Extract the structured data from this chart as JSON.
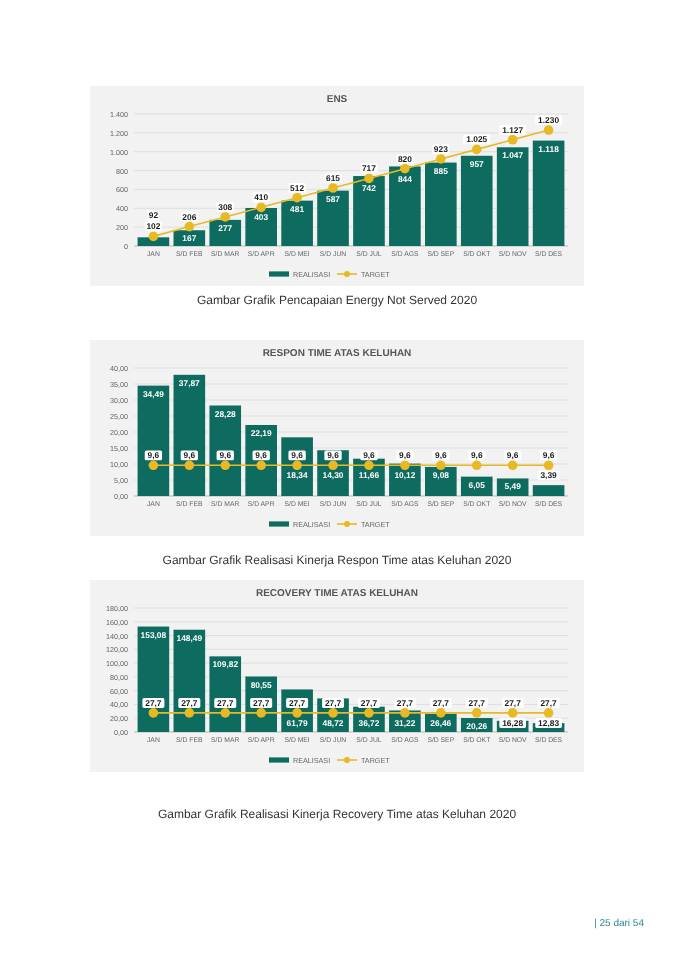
{
  "chart_data": [
    {
      "type": "bar",
      "title": "ENS",
      "categories": [
        "JAN",
        "S/D FEB",
        "S/D MAR",
        "S/D APR",
        "S/D MEI",
        "S/D JUN",
        "S/D JUL",
        "S/D AGS",
        "S/D SEP",
        "S/D OKT",
        "S/D NOV",
        "S/D DES"
      ],
      "series": [
        {
          "name": "REALISASI",
          "color": "#0e6b5f",
          "values": [
            92,
            167,
            277,
            403,
            481,
            587,
            742,
            844,
            885,
            957,
            1047,
            1118
          ],
          "value_labels": [
            "92",
            "167",
            "277",
            "403",
            "481",
            "587",
            "742",
            "844",
            "885",
            "957",
            "1.047",
            "1.118"
          ]
        },
        {
          "name": "TARGET",
          "type": "line",
          "color": "#e8b923",
          "values": [
            102,
            206,
            308,
            410,
            512,
            615,
            717,
            820,
            923,
            1025,
            1127,
            1230
          ],
          "value_labels": [
            "102",
            "206",
            "308",
            "410",
            "512",
            "615",
            "717",
            "820",
            "923",
            "1.025",
            "1.127",
            "1.230"
          ]
        }
      ],
      "ylim": [
        0,
        1400
      ],
      "yticks": [
        0,
        200,
        400,
        600,
        800,
        {
          "value": 1000,
          "label": "1.000"
        },
        {
          "value": 1200,
          "label": "1.200"
        },
        {
          "value": 1400,
          "label": "1.400"
        }
      ],
      "grid": "y",
      "legend": "bottom",
      "marker": "circle",
      "annotations": [
        "Gambar Grafik Pencapaian Energy Not Served 2020"
      ]
    },
    {
      "type": "bar",
      "title": "RESPON TIME ATAS KELUHAN",
      "categories": [
        "JAN",
        "S/D FEB",
        "S/D MAR",
        "S/D APR",
        "S/D MEI",
        "S/D JUN",
        "S/D JUL",
        "S/D AGS",
        "S/D SEP",
        "S/D OKT",
        "S/D NOV",
        "S/D DES"
      ],
      "series": [
        {
          "name": "REALISASI",
          "color": "#0e6b5f",
          "values": [
            34.49,
            37.87,
            28.28,
            22.19,
            18.34,
            14.3,
            11.66,
            10.12,
            9.08,
            6.05,
            5.49,
            3.39
          ],
          "value_labels": [
            "34,49",
            "37,87",
            "28,28",
            "22,19",
            "18,34",
            "14,30",
            "11,66",
            "10,12",
            "9,08",
            "6,05",
            "5,49",
            "3,39"
          ]
        },
        {
          "name": "TARGET",
          "type": "line",
          "color": "#e8b923",
          "values": [
            9.6,
            9.6,
            9.6,
            9.6,
            9.6,
            9.6,
            9.6,
            9.6,
            9.6,
            9.6,
            9.6,
            9.6
          ],
          "value_labels": [
            "9,6",
            "9,6",
            "9,6",
            "9,6",
            "9,6",
            "9,6",
            "9,6",
            "9,6",
            "9,6",
            "9,6",
            "9,6",
            "9,6"
          ]
        }
      ],
      "ylim": [
        0,
        40
      ],
      "yticks": [
        {
          "value": 0,
          "label": "0,00"
        },
        {
          "value": 5,
          "label": "5,00"
        },
        {
          "value": 10,
          "label": "10,00"
        },
        {
          "value": 15,
          "label": "15,00"
        },
        {
          "value": 20,
          "label": "20,00"
        },
        {
          "value": 25,
          "label": "25,00"
        },
        {
          "value": 30,
          "label": "30,00"
        },
        {
          "value": 35,
          "label": "35,00"
        },
        {
          "value": 40,
          "label": "40,00"
        }
      ],
      "grid": "y",
      "legend": "bottom",
      "marker": "circle",
      "annotations": [
        "Gambar Grafik Realisasi Kinerja Respon Time atas Keluhan 2020"
      ]
    },
    {
      "type": "bar",
      "title": "RECOVERY TIME ATAS KELUHAN",
      "categories": [
        "JAN",
        "S/D FEB",
        "S/D MAR",
        "S/D APR",
        "S/D MEI",
        "S/D JUN",
        "S/D JUL",
        "S/D AGS",
        "S/D SEP",
        "S/D OKT",
        "S/D NOV",
        "S/D DES"
      ],
      "series": [
        {
          "name": "REALISASI",
          "color": "#0e6b5f",
          "values": [
            153.08,
            148.49,
            109.82,
            80.55,
            61.79,
            48.72,
            36.72,
            31.22,
            26.46,
            20.26,
            16.28,
            12.83
          ],
          "value_labels": [
            "153,08",
            "148,49",
            "109,82",
            "80,55",
            "61,79",
            "48,72",
            "36,72",
            "31,22",
            "26,46",
            "20,26",
            "16,28",
            "12,83"
          ]
        },
        {
          "name": "TARGET",
          "type": "line",
          "color": "#e8b923",
          "values": [
            27.7,
            27.7,
            27.7,
            27.7,
            27.7,
            27.7,
            27.7,
            27.7,
            27.7,
            27.7,
            27.7,
            27.7
          ],
          "value_labels": [
            "27,7",
            "27,7",
            "27,7",
            "27,7",
            "27,7",
            "27,7",
            "27,7",
            "27,7",
            "27,7",
            "27,7",
            "27,7",
            "27,7"
          ]
        }
      ],
      "ylim": [
        0,
        180
      ],
      "yticks": [
        {
          "value": 0,
          "label": "0,00"
        },
        {
          "value": 20,
          "label": "20,00"
        },
        {
          "value": 40,
          "label": "40,00"
        },
        {
          "value": 60,
          "label": "60,00"
        },
        {
          "value": 80,
          "label": "80,00"
        },
        {
          "value": 100,
          "label": "100,00"
        },
        {
          "value": 120,
          "label": "120,00"
        },
        {
          "value": 140,
          "label": "140,00"
        },
        {
          "value": 160,
          "label": "160,00"
        },
        {
          "value": 180,
          "label": "180,00"
        }
      ],
      "grid": "y",
      "legend": "bottom",
      "marker": "circle",
      "annotations": [
        "Gambar Grafik Realisasi Kinerja Recovery Time atas Keluhan 2020",
        "| 25 dari 54"
      ]
    }
  ]
}
